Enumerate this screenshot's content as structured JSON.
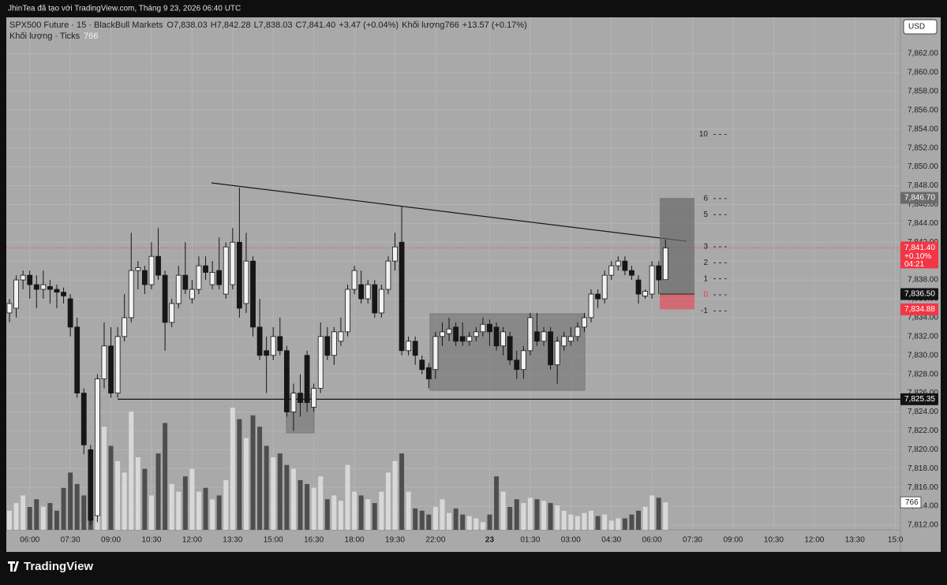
{
  "header": {
    "credit": "JhinTea đã tạo với TradingView.com, Tháng 9 23, 2026 06:40 UTC"
  },
  "footer": {
    "brand": "TradingView"
  },
  "chart_data": {
    "type": "candlestick",
    "legend": {
      "symbol": "SPX500 Future · 15 · BlackBull Markets",
      "open": "O7,838.03",
      "high": "H7,842.28",
      "low": "L7,838.03",
      "close": "C7,841.40",
      "change": "+3.47 (+0.04%)",
      "volume": "Khối lượng766",
      "volume_change": "+13.57 (+0.17%)",
      "indicator": "Khối lượng · Ticks",
      "indicator_value": "766"
    },
    "currency": "USD",
    "categories": [
      null,
      null,
      null,
      "06:00",
      null,
      null,
      null,
      null,
      null,
      "07:30",
      null,
      null,
      null,
      null,
      null,
      "09:00",
      null,
      null,
      null,
      null,
      null,
      "10:30",
      null,
      null,
      null,
      null,
      null,
      "12:00",
      null,
      null,
      null,
      null,
      null,
      "13:30",
      null,
      null,
      null,
      null,
      null,
      "15:00",
      null,
      null,
      null,
      null,
      null,
      "16:30",
      null,
      null,
      null,
      null,
      null,
      "18:00",
      null,
      null,
      null,
      null,
      null,
      "19:30",
      null,
      null,
      null,
      null,
      null,
      "22:00",
      null,
      null,
      null,
      null,
      null,
      null,
      null,
      "23",
      null,
      null,
      null,
      null,
      null,
      "01:30",
      null,
      null,
      null,
      null,
      null,
      "03:00",
      null,
      null,
      null,
      null,
      null,
      "04:30",
      null,
      null,
      null,
      null,
      null,
      "06:00",
      null,
      null
    ],
    "future_categories": [
      "07:30",
      "09:00",
      "10:30",
      "12:00",
      "13:30",
      "15:0"
    ],
    "open": [
      7834.5,
      7835,
      7838,
      7838.5,
      7837.5,
      7837,
      7837.3,
      7837,
      7836.7,
      7836,
      7833,
      7826,
      7820,
      7813,
      7827.5,
      7831,
      7826,
      7832,
      7834,
      7839,
      7839,
      7837.5,
      7840.5,
      7838.5,
      7833.5,
      7835.5,
      7838.5,
      7836,
      7837,
      7839.5,
      7837.5,
      7839,
      7836.5,
      7837.5,
      7842,
      7835.5,
      7840,
      7833,
      7830.5,
      7830,
      7832,
      7830.5,
      7824,
      7826,
      7830,
      7824.5,
      7826.5,
      7832,
      7830,
      7831.5,
      7832.5,
      7837,
      7837.5,
      7836,
      7837.5,
      7834.5,
      7837,
      7840,
      7842,
      7830.5,
      7831.5,
      7829.5,
      7828.7,
      7828.5,
      7832,
      7832.3,
      7833,
      7832,
      7831.5,
      7832,
      7832.5,
      7833.3,
      7833,
      7831,
      7832,
      7829.5,
      7828.5,
      7830.5,
      7832.5,
      7831.5,
      7832.5,
      7829,
      7831,
      7831.5,
      7832,
      7833,
      7834,
      7836.5,
      7836,
      7838.5,
      7839.5,
      7840,
      7839,
      7838,
      7836.3,
      7836.5,
      7839.5,
      7838.03
    ],
    "high": [
      7836,
      7838.5,
      7839,
      7839,
      7838.5,
      7839,
      7838,
      7837.5,
      7837.2,
      7836.5,
      7834,
      7826.5,
      7820.5,
      7828,
      7833.5,
      7833,
      7833,
      7836.5,
      7843,
      7840,
      7839.5,
      7842,
      7843.5,
      7839,
      7836,
      7839.5,
      7842,
      7838,
      7840.5,
      7840.5,
      7840,
      7842.5,
      7842,
      7843.5,
      7847.8,
      7843,
      7840.5,
      7836,
      7832,
      7833,
      7834,
      7831,
      7827,
      7828,
      7830.5,
      7827,
      7833.5,
      7833,
      7833,
      7834,
      7837.5,
      7839.5,
      7839,
      7838,
      7838,
      7837.5,
      7840.5,
      7843,
      7845.8,
      7832,
      7832,
      7830,
      7829.2,
      7832.5,
      7833.5,
      7834,
      7833.5,
      7833.5,
      7832.5,
      7833,
      7834,
      7833.8,
      7833.5,
      7833,
      7832.5,
      7830.5,
      7831,
      7834.5,
      7834.5,
      7833,
      7833,
      7832,
      7832.5,
      7833,
      7833.5,
      7834.5,
      7837,
      7837,
      7839,
      7840,
      7840.5,
      7840.5,
      7839.5,
      7838.5,
      7837,
      7840,
      7840,
      7842.28
    ],
    "low": [
      7833.5,
      7834,
      7837,
      7836,
      7835,
      7836,
      7835.5,
      7835,
      7835.5,
      7832,
      7825.5,
      7819.5,
      7812,
      7812.3,
      7826.5,
      7825.5,
      7825.5,
      7831.5,
      7833.5,
      7837,
      7836.5,
      7837,
      7838,
      7830.5,
      7833,
      7835,
      7836.5,
      7835.5,
      7836.5,
      7838,
      7837,
      7837,
      7836,
      7837,
      7834,
      7834.5,
      7832,
      7829.5,
      7826,
      7829.5,
      7830,
      7823.5,
      7822,
      7823.5,
      7824,
      7824,
      7826,
      7829.5,
      7829,
      7831,
      7832,
      7836.5,
      7835.5,
      7835.5,
      7834,
      7834,
      7836.5,
      7839,
      7830,
      7830,
      7829,
      7828,
      7826.5,
      7827.5,
      7831,
      7831.5,
      7831,
      7831,
      7831,
      7831.5,
      7832,
      7831,
      7830.5,
      7830,
      7829,
      7827.5,
      7827.5,
      7830,
      7831,
      7831,
      7828.5,
      7827,
      7830.5,
      7831,
      7831.5,
      7832.5,
      7833.5,
      7835,
      7835.5,
      7838,
      7839,
      7838.5,
      7838,
      7835.5,
      7836,
      7836,
      7836.5,
      7838.03
    ],
    "close": [
      7835.5,
      7838,
      7838.5,
      7837.5,
      7837,
      7837.5,
      7837,
      7836.7,
      7836.3,
      7833,
      7826,
      7820.5,
      7812.5,
      7827.5,
      7831,
      7826,
      7832,
      7834,
      7839,
      7839.3,
      7837.5,
      7840.5,
      7838.5,
      7833.5,
      7835.5,
      7838.5,
      7837,
      7837,
      7839.5,
      7838.8,
      7838.8,
      7837.5,
      7841.5,
      7842,
      7835,
      7840,
      7833,
      7830,
      7830,
      7832,
      7830.5,
      7824,
      7826,
      7825,
      7825,
      7826.5,
      7832,
      7830,
      7832.5,
      7832.5,
      7837,
      7839,
      7836,
      7837.5,
      7834.5,
      7837,
      7840,
      7841.5,
      7830.5,
      7831.5,
      7830,
      7828.5,
      7827.5,
      7832,
      7832.5,
      7832.8,
      7831.5,
      7831.5,
      7832,
      7832.5,
      7833.3,
      7832.5,
      7831,
      7832.5,
      7829.5,
      7828.5,
      7830.5,
      7834,
      7831.5,
      7832.5,
      7829,
      7831.5,
      7832,
      7832,
      7833,
      7834,
      7836.5,
      7836,
      7838.5,
      7839.5,
      7840,
      7839,
      7838.5,
      7836.5,
      7836.8,
      7839.5,
      7838,
      7841.4
    ],
    "volume": [
      533,
      746,
      959,
      639,
      852,
      639,
      746,
      533,
      1172,
      1598,
      1278,
      959,
      1065,
      2982,
      2876,
      2343,
      1917,
      1598,
      3302,
      2024,
      1704,
      959,
      2130,
      2982,
      1278,
      1065,
      1491,
      1704,
      1065,
      1172,
      852,
      959,
      1385,
      3408,
      3089,
      2556,
      3195,
      2876,
      2343,
      2024,
      2130,
      1811,
      1704,
      1385,
      1278,
      1172,
      1491,
      852,
      959,
      809,
      1811,
      1065,
      959,
      852,
      746,
      1065,
      1598,
      1917,
      2130,
      1065,
      596,
      533,
      426,
      639,
      852,
      469,
      596,
      426,
      383,
      320,
      213,
      426,
      1491,
      1065,
      639,
      852,
      746,
      895,
      852,
      809,
      746,
      682,
      533,
      426,
      383,
      469,
      533,
      383,
      426,
      256,
      320,
      320,
      426,
      533,
      639,
      959,
      895,
      766
    ],
    "up_color": "#f2f2f2",
    "down_color": "#161616",
    "volume_up_color": "#d8d8d8",
    "volume_down_color": "#4e4e4e",
    "ylim": [
      7811.5,
      7865.85
    ],
    "yticks": [
      {
        "value": 7812,
        "label": "7,812.00"
      },
      {
        "value": 7814,
        "label": "7,814.00"
      },
      {
        "value": 7816,
        "label": "7,816.00"
      },
      {
        "value": 7818,
        "label": "7,818.00"
      },
      {
        "value": 7820,
        "label": "7,820.00"
      },
      {
        "value": 7822,
        "label": "7,822.00"
      },
      {
        "value": 7824,
        "label": "7,824.00"
      },
      {
        "value": 7826,
        "label": "7,826.00"
      },
      {
        "value": 7828,
        "label": "7,828.00"
      },
      {
        "value": 7830,
        "label": "7,830.00"
      },
      {
        "value": 7832,
        "label": "7,832.00"
      },
      {
        "value": 7834,
        "label": "7,834.00"
      },
      {
        "value": 7836,
        "label": "7,836.00"
      },
      {
        "value": 7838,
        "label": "7,838.00"
      },
      {
        "value": 7840,
        "label": "7,840.00"
      },
      {
        "value": 7842,
        "label": "7,842.00"
      },
      {
        "value": 7844,
        "label": "7,844.00"
      },
      {
        "value": 7846,
        "label": "7,846.00"
      },
      {
        "value": 7848,
        "label": "7,848.00"
      },
      {
        "value": 7850,
        "label": "7,850.00"
      },
      {
        "value": 7852,
        "label": "7,852.00"
      },
      {
        "value": 7854,
        "label": "7,854.00"
      },
      {
        "value": 7856,
        "label": "7,856.00"
      },
      {
        "value": 7858,
        "label": "7,858.00"
      },
      {
        "value": 7860,
        "label": "7,860.00"
      },
      {
        "value": 7862,
        "label": "7,862.00"
      }
    ],
    "vlim": [
      0,
      14300
    ],
    "grid": true,
    "price_labels": [
      {
        "value": 7846.7,
        "label": "7,846.70",
        "color": "#6b6b6b"
      },
      {
        "value": 7841.4,
        "label": "7,841.40",
        "color": "#f23645"
      },
      {
        "value": 7836.5,
        "label": "7,836.50",
        "color": "#131313"
      },
      {
        "value": 7834.88,
        "label": "7,834.88",
        "color": "#f23645"
      },
      {
        "value": 7825.35,
        "label": "7,825.35",
        "color": "#131313"
      }
    ],
    "last_change": "+0.10%",
    "countdown": "04:21",
    "last_volume_label": 766,
    "position_levels": [
      10,
      6,
      5,
      3,
      2,
      1,
      0,
      -1
    ]
  }
}
